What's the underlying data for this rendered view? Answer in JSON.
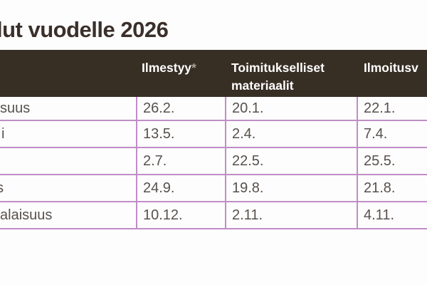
{
  "page": {
    "title_fragment": "lut vuodelle 2026",
    "background_color": "#fdfdfd"
  },
  "table": {
    "header_bg_color": "#372e24",
    "header_text_color": "#ffffff",
    "border_color": "#c08ec6",
    "body_text_color": "#57514d",
    "columns": [
      {
        "id": "issue-name",
        "label": ""
      },
      {
        "id": "ilmestyy",
        "label": "Ilmestyy",
        "note_marker": "*"
      },
      {
        "id": "toimitukselliset-materiaalit",
        "label": "Toimitukselliset materiaalit"
      },
      {
        "id": "ilmoitusvaraukset",
        "label_fragment": "Ilmoitusv"
      }
    ],
    "rows": [
      {
        "label_fragment": "suus",
        "ilmestyy": "26.2.",
        "toimitukselliset": "20.1.",
        "ilmoitus": "22.1."
      },
      {
        "label_fragment": "i",
        "ilmestyy": "13.5.",
        "toimitukselliset": "2.4.",
        "ilmoitus": "7.4."
      },
      {
        "label_fragment": "",
        "ilmestyy": "2.7.",
        "toimitukselliset": "22.5.",
        "ilmoitus": "25.5."
      },
      {
        "label_fragment": "s",
        "ilmestyy": "24.9.",
        "toimitukselliset": "19.8.",
        "ilmoitus": "21.8."
      },
      {
        "label_fragment": "alaisuus",
        "ilmestyy": "10.12.",
        "toimitukselliset": "2.11.",
        "ilmoitus": "4.11."
      }
    ]
  }
}
